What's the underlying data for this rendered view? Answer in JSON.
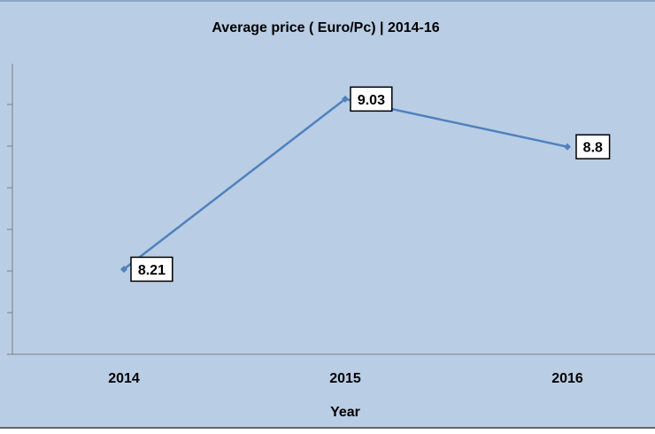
{
  "colors": {
    "chart_background": "#b9cde5",
    "series_line": "#4f81bd",
    "axis": "#808080",
    "label_box_border": "#000000",
    "label_box_fill": "#ffffff"
  },
  "chart_data": {
    "type": "line",
    "title": "Average price ( Euro/Pc) | 2014-16",
    "xlabel": "Year",
    "ylabel": "",
    "categories": [
      "2014",
      "2015",
      "2016"
    ],
    "series": [
      {
        "values": [
          8.21,
          9.03,
          8.8
        ],
        "labels": [
          "8.21",
          "9.03",
          "8.8"
        ]
      }
    ],
    "ylim": [
      7.8,
      9.2
    ],
    "y_tick_step": 0.1,
    "y_tick_labels_visible": false,
    "grid": false,
    "legend": "none",
    "markers": "diamond"
  }
}
